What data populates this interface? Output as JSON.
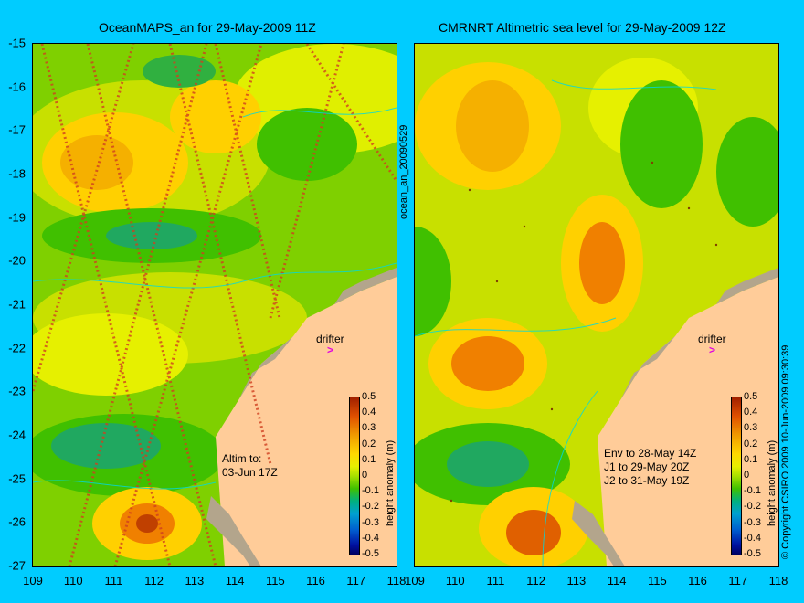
{
  "titles": {
    "left": "OceanMAPS_an for 29-May-2009 11Z",
    "right": "CMRNRT Altimetric sea level  for 29-May-2009 12Z"
  },
  "y_ticks": [
    "-15",
    "-16",
    "-17",
    "-18",
    "-19",
    "-20",
    "-21",
    "-22",
    "-23",
    "-24",
    "-25",
    "-26",
    "-27"
  ],
  "x_ticks_left": [
    "109",
    "110",
    "111",
    "112",
    "113",
    "114",
    "115",
    "116",
    "117",
    "118"
  ],
  "x_ticks_right": [
    "109",
    "110",
    "111",
    "112",
    "113",
    "114",
    "115",
    "116",
    "117",
    "118"
  ],
  "drifter_label": "drifter",
  "colorbar": {
    "ticks": [
      "0.5",
      "0.4",
      "0.3",
      "0.2",
      "0.1",
      "0",
      "-0.1",
      "-0.2",
      "-0.3",
      "-0.4",
      "-0.5"
    ],
    "title": "height anomaly (m)"
  },
  "left_note": {
    "line1": "Altim to:",
    "line2": "03-Jun 17Z"
  },
  "right_note": {
    "line1": "Env to 28-May 14Z",
    "line2": "J1 to 29-May 20Z",
    "line3": "J2 to 31-May 19Z"
  },
  "side_label": "ocean_an_20090529",
  "copyright": "© Copyright CSIRO 2009   10-Jun-2009 09:30:39",
  "colors": {
    "background": "#00ccff",
    "land": "#ffcc99",
    "coast": "#b3a58c"
  },
  "chart_data": {
    "type": "heatmap",
    "x_range": [
      109,
      118
    ],
    "y_range": [
      -27,
      -15
    ],
    "xlabel": "",
    "ylabel": "",
    "colorbar_range": [
      -0.5,
      0.5
    ],
    "unit": "height anomaly (m)"
  }
}
